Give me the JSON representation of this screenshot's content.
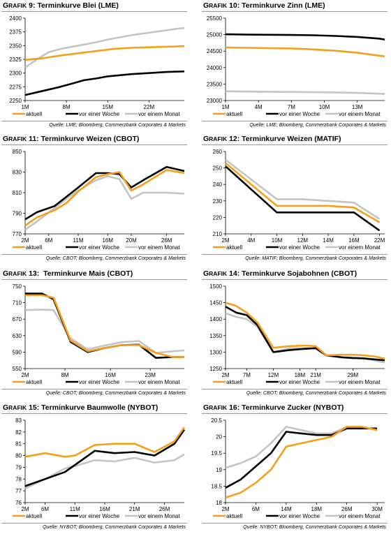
{
  "legend": {
    "aktuell": "aktuell",
    "woche": "vor einer Woche",
    "monat": "vor einem Monat"
  },
  "colors": {
    "aktuell": "#f5a01a",
    "woche": "#000000",
    "monat": "#c4c4c4"
  },
  "panels": [
    {
      "grafik": "RAFIK",
      "gfirst": "G",
      "num": " 9: ",
      "name": "Terminkurve Blei (LME)",
      "source": "Quelle: LME; Bloomberg, Commerzbank Corporates & Markets"
    },
    {
      "grafik": "RAFIK",
      "gfirst": "G",
      "num": " 10: ",
      "name": "Terminkurve Zinn (LME)",
      "source": "Quelle: LME; Bloomberg, Commerzbank Corporates & Markets"
    },
    {
      "grafik": "RAFIK",
      "gfirst": "G",
      "num": " 11: ",
      "name": "Terminkurve Weizen (CBOT)",
      "source": "Quelle: CBOT; Bloomberg, Commerzbank Corporates & Markets"
    },
    {
      "grafik": "RAFIK",
      "gfirst": "G",
      "num": " 12: ",
      "name": "Terminkurve Weizen (MATIF)",
      "source": "Quelle: MATIF; Bloomberg, Commerzbank Corporates & Markets"
    },
    {
      "grafik": "RAFIK",
      "gfirst": "G",
      "num": " 13:  ",
      "name": "Terminkurve Mais (CBOT)",
      "source": "Quelle: CBOT; Bloomberg, Commerzbank Corporates & Markets"
    },
    {
      "grafik": "RAFIK",
      "gfirst": "G",
      "num": " 14: ",
      "name": "Terminkurve Sojabohnen (CBOT)",
      "source": "Quelle: CBOT; Bloomberg, Commerzbank Corporates & Markets"
    },
    {
      "grafik": "RAFIK",
      "gfirst": "G",
      "num": " 15: ",
      "name": "Terminkurve Baumwolle (NYBOT)",
      "source": "Quelle: NYBOT; Bloomberg, Commerzbank Corporates & Markets"
    },
    {
      "grafik": "RAFIK",
      "gfirst": "G",
      "num": " 16: ",
      "name": "Terminkurve Zucker (NYBOT)",
      "source": "Quelle: NYBOT; Bloomberg, Commerzbank Corporates & Markets"
    }
  ],
  "chart_data": [
    {
      "type": "line",
      "xticks": [
        "1M",
        "8M",
        "15M",
        "22M"
      ],
      "xtick_pos": [
        0,
        7,
        14,
        21
      ],
      "xlim": [
        0,
        27
      ],
      "ylim": [
        2250,
        2400
      ],
      "yticks": [
        2250,
        2275,
        2300,
        2325,
        2350,
        2375,
        2400
      ],
      "series": [
        {
          "name": "aktuell",
          "x": [
            0,
            3,
            6,
            9,
            12,
            15,
            18,
            21,
            24,
            27
          ],
          "values": [
            2324,
            2327,
            2332,
            2336,
            2340,
            2344,
            2346,
            2347,
            2348,
            2349
          ]
        },
        {
          "name": "vor einer Woche",
          "x": [
            0,
            2,
            4,
            6,
            8,
            10,
            12,
            14,
            16,
            18,
            21,
            24,
            27
          ],
          "values": [
            2260,
            2265,
            2270,
            2275,
            2281,
            2287,
            2290,
            2294,
            2296,
            2298,
            2300,
            2302,
            2303
          ]
        },
        {
          "name": "vor einem Monat",
          "x": [
            0,
            2,
            4,
            6,
            8,
            10,
            12,
            14,
            16,
            18,
            20,
            22,
            24,
            26,
            27
          ],
          "values": [
            2310,
            2325,
            2338,
            2344,
            2348,
            2352,
            2356,
            2361,
            2365,
            2369,
            2372,
            2375,
            2378,
            2381,
            2382
          ]
        }
      ]
    },
    {
      "type": "line",
      "xticks": [
        "1M",
        "4M",
        "7M",
        "10M",
        "13M"
      ],
      "xtick_pos": [
        0,
        3,
        6,
        9,
        12
      ],
      "xlim": [
        0,
        14.5
      ],
      "ylim": [
        23000,
        25500
      ],
      "yticks": [
        23000,
        23500,
        24000,
        24500,
        25000,
        25500
      ],
      "series": [
        {
          "name": "aktuell",
          "x": [
            0,
            2,
            4,
            6,
            8,
            10,
            12,
            14.5
          ],
          "values": [
            24610,
            24600,
            24590,
            24580,
            24550,
            24510,
            24450,
            24340
          ]
        },
        {
          "name": "vor einer Woche",
          "x": [
            0,
            2,
            4,
            6,
            8,
            10,
            12,
            14,
            14.5
          ],
          "values": [
            25010,
            25000,
            24995,
            24990,
            24980,
            24960,
            24930,
            24880,
            24850
          ]
        },
        {
          "name": "vor einem Monat",
          "x": [
            0,
            3,
            6,
            9,
            12,
            14.5
          ],
          "values": [
            23280,
            23270,
            23260,
            23250,
            23230,
            23200
          ]
        }
      ]
    },
    {
      "type": "line",
      "xticks": [
        "2M",
        "6M",
        "11M",
        "16M",
        "20M",
        "26M"
      ],
      "xtick_pos": [
        0,
        4,
        9,
        14,
        18,
        24
      ],
      "xlim": [
        0,
        27
      ],
      "ylim": [
        770,
        850
      ],
      "yticks": [
        770,
        790,
        810,
        830,
        850
      ],
      "series": [
        {
          "name": "aktuell",
          "x": [
            0,
            2,
            5,
            7,
            9,
            12,
            14,
            16,
            18,
            20,
            24,
            27
          ],
          "values": [
            778,
            786,
            793,
            800,
            811,
            825,
            828,
            830,
            812,
            818,
            832,
            829
          ]
        },
        {
          "name": "vor einer Woche",
          "x": [
            0,
            2,
            5,
            7,
            9,
            12,
            14,
            16,
            18,
            20,
            24,
            27
          ],
          "values": [
            784,
            791,
            797,
            806,
            815,
            829,
            829,
            828,
            815,
            822,
            835,
            831
          ]
        },
        {
          "name": "vor einem Monat",
          "x": [
            0,
            2,
            5,
            7,
            9,
            12,
            14,
            16,
            18,
            20,
            24,
            27
          ],
          "values": [
            774,
            782,
            795,
            804,
            812,
            822,
            826,
            823,
            804,
            810,
            810,
            809
          ]
        }
      ]
    },
    {
      "type": "line",
      "xticks": [
        "2M",
        "4M",
        "10M",
        "12M",
        "14M",
        "16M",
        "22M"
      ],
      "xtick_pos": [
        0,
        1,
        2,
        3,
        4,
        5,
        6
      ],
      "xlim": [
        0,
        6.2
      ],
      "ylim": [
        210,
        260
      ],
      "yticks": [
        210,
        220,
        230,
        240,
        250,
        260
      ],
      "series": [
        {
          "name": "aktuell",
          "x": [
            0,
            1,
            2,
            3,
            4,
            5,
            6
          ],
          "values": [
            253,
            240,
            227,
            227,
            227,
            226,
            217
          ]
        },
        {
          "name": "vor einer Woche",
          "x": [
            0,
            1,
            2,
            3,
            4,
            5,
            6
          ],
          "values": [
            251,
            237,
            223,
            223,
            223,
            223,
            212
          ]
        },
        {
          "name": "vor einem Monat",
          "x": [
            0,
            1,
            2,
            3,
            4,
            5,
            6
          ],
          "values": [
            255,
            243,
            231,
            231,
            230,
            229,
            219
          ]
        }
      ]
    },
    {
      "type": "line",
      "xticks": [
        "2M",
        "8M",
        "16M",
        "23M"
      ],
      "xtick_pos": [
        0,
        7,
        15,
        22
      ],
      "xlim": [
        0,
        28
      ],
      "ylim": [
        550,
        750
      ],
      "yticks": [
        550,
        590,
        630,
        670,
        710,
        750
      ],
      "series": [
        {
          "name": "aktuell",
          "x": [
            0,
            3,
            5,
            8,
            11,
            14,
            17,
            20,
            23,
            26,
            28
          ],
          "values": [
            728,
            728,
            722,
            618,
            592,
            600,
            607,
            607,
            588,
            578,
            578
          ]
        },
        {
          "name": "vor einer Woche",
          "x": [
            0,
            3,
            5,
            8,
            11,
            14,
            17,
            20,
            23,
            26,
            28
          ],
          "values": [
            732,
            732,
            718,
            615,
            590,
            600,
            607,
            608,
            576,
            578,
            578
          ]
        },
        {
          "name": "vor einem Monat",
          "x": [
            0,
            3,
            5,
            8,
            11,
            14,
            17,
            20,
            23,
            26,
            28
          ],
          "values": [
            692,
            693,
            692,
            623,
            597,
            606,
            614,
            617,
            588,
            592,
            594
          ]
        }
      ]
    },
    {
      "type": "line",
      "xticks": [
        "2M",
        "7M",
        "12M",
        "18M",
        "21M",
        "29M"
      ],
      "xtick_pos": [
        0,
        4,
        9,
        14,
        17,
        24
      ],
      "xlim": [
        0,
        30
      ],
      "ylim": [
        1250,
        1500
      ],
      "yticks": [
        1250,
        1300,
        1350,
        1400,
        1450,
        1500
      ],
      "series": [
        {
          "name": "aktuell",
          "x": [
            0,
            2,
            4,
            6,
            9,
            12,
            15,
            17,
            19,
            22,
            24,
            26,
            28,
            30
          ],
          "values": [
            1450,
            1440,
            1420,
            1390,
            1313,
            1318,
            1320,
            1318,
            1290,
            1292,
            1292,
            1290,
            1287,
            1280
          ]
        },
        {
          "name": "vor einer Woche",
          "x": [
            0,
            2,
            4,
            6,
            9,
            12,
            15,
            17,
            19,
            22,
            24,
            26,
            28,
            30
          ],
          "values": [
            1438,
            1420,
            1412,
            1382,
            1300,
            1306,
            1310,
            1312,
            1290,
            1284,
            1282,
            1281,
            1278,
            1275
          ]
        },
        {
          "name": "vor einem Monat",
          "x": [
            0,
            2,
            4,
            6,
            9,
            12,
            15,
            17,
            19,
            22,
            24,
            26,
            28,
            30
          ],
          "values": [
            1418,
            1407,
            1400,
            1377,
            1300,
            1311,
            1312,
            1310,
            1289,
            1285,
            1283,
            1281,
            1275,
            1268
          ]
        }
      ]
    },
    {
      "type": "line",
      "xticks": [
        "2M",
        "6M",
        "11M",
        "16M",
        "21M",
        "26M"
      ],
      "xtick_pos": [
        0,
        2,
        5,
        8,
        11,
        14
      ],
      "xlim": [
        0,
        16
      ],
      "ylim": [
        76,
        83
      ],
      "yticks": [
        76,
        77,
        78,
        79,
        80,
        81,
        82,
        83
      ],
      "series": [
        {
          "name": "aktuell",
          "x": [
            0,
            2,
            4,
            5,
            7,
            9,
            11,
            13,
            15,
            16
          ],
          "values": [
            79.9,
            80.2,
            79.9,
            80.0,
            80.9,
            81.0,
            81.0,
            80.3,
            81.2,
            82.4
          ]
        },
        {
          "name": "vor einer Woche",
          "x": [
            0,
            2,
            4,
            5,
            7,
            9,
            11,
            13,
            15,
            16
          ],
          "values": [
            77.4,
            78.0,
            78.6,
            79.2,
            80.4,
            80.2,
            80.3,
            80.0,
            81.0,
            82.2
          ]
        },
        {
          "name": "vor einem Monat",
          "x": [
            0,
            2,
            4,
            5,
            7,
            9,
            11,
            13,
            15,
            16
          ],
          "values": [
            77.2,
            78.0,
            78.9,
            79.1,
            79.6,
            79.5,
            79.8,
            79.4,
            79.6,
            80.1
          ]
        }
      ]
    },
    {
      "type": "line",
      "xticks": [
        "2M",
        "6M",
        "14M",
        "18M",
        "26M",
        "30M"
      ],
      "xtick_pos": [
        0,
        2,
        4,
        6,
        8,
        10
      ],
      "xlim": [
        0,
        10.5
      ],
      "ylim": [
        18.0,
        20.5
      ],
      "yticks": [
        18.0,
        18.5,
        19.0,
        19.5,
        20.0,
        20.5
      ],
      "series": [
        {
          "name": "aktuell",
          "x": [
            0,
            1,
            2,
            3,
            4,
            5,
            6,
            7,
            8,
            9,
            10
          ],
          "values": [
            18.15,
            18.3,
            18.6,
            19.0,
            19.7,
            19.8,
            19.9,
            20.0,
            20.3,
            20.3,
            20.2
          ]
        },
        {
          "name": "vor einer Woche",
          "x": [
            0,
            1,
            2,
            3,
            4,
            5,
            6,
            7,
            8,
            9,
            10
          ],
          "values": [
            18.45,
            18.7,
            19.1,
            19.5,
            20.15,
            20.1,
            20.05,
            20.05,
            20.25,
            20.25,
            20.25
          ]
        },
        {
          "name": "vor einem Monat",
          "x": [
            0,
            1,
            2,
            3,
            4,
            5,
            6,
            7,
            8,
            9,
            10
          ],
          "values": [
            19.05,
            19.2,
            19.4,
            19.8,
            20.3,
            20.2,
            20.1,
            20.1,
            20.3,
            20.3,
            20.2
          ]
        }
      ]
    }
  ]
}
